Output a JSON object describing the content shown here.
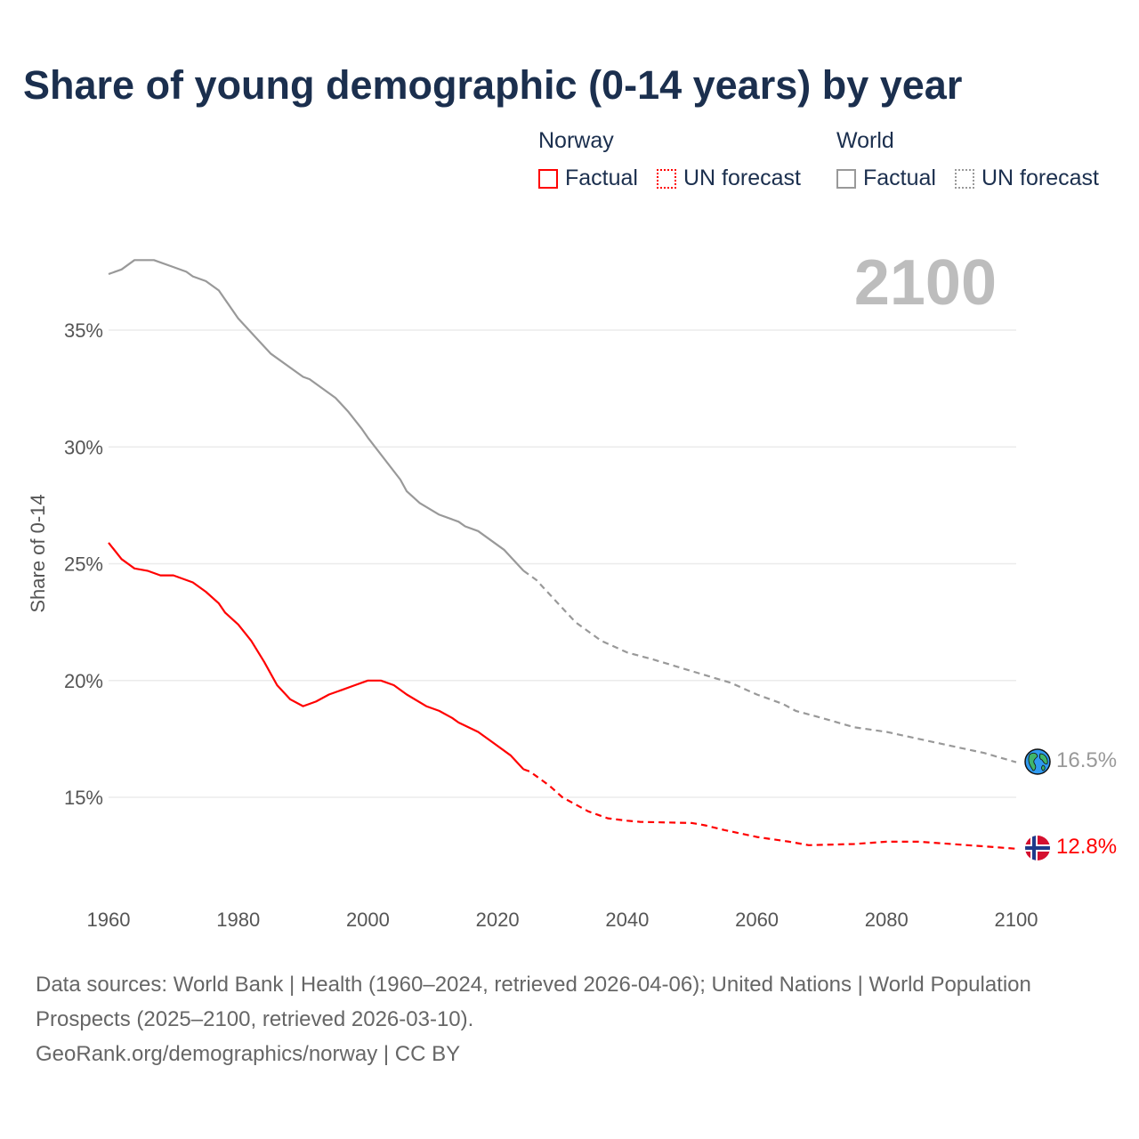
{
  "title": "Share of young demographic (0-14 years) by year",
  "legend": {
    "norway": {
      "group": "Norway",
      "factual": "Factual",
      "forecast": "UN forecast"
    },
    "world": {
      "group": "World",
      "factual": "Factual",
      "forecast": "UN forecast"
    }
  },
  "year_label": "2100",
  "footer": {
    "sources": "Data sources: World Bank | Health (1960–2024, retrieved 2026-04-06); United Nations | World Population Prospects (2025–2100, retrieved 2026-03-10).",
    "credit": "GeoRank.org/demographics/norway | CC BY"
  },
  "end_labels": {
    "world": "16.5%",
    "norway": "12.8%"
  },
  "chart_data": {
    "type": "line",
    "title": "Share of young demographic (0-14 years) by year",
    "xlabel": "",
    "ylabel": "Share of 0-14",
    "xlim": [
      1960,
      2100
    ],
    "ylim": [
      11,
      39
    ],
    "x_ticks": [
      "1960",
      "1980",
      "2000",
      "2020",
      "2040",
      "2060",
      "2080",
      "2100"
    ],
    "y_ticks": [
      {
        "v": 15,
        "label": "15%"
      },
      {
        "v": 20,
        "label": "20%"
      },
      {
        "v": 25,
        "label": "25%"
      },
      {
        "v": 30,
        "label": "30%"
      },
      {
        "v": 35,
        "label": "35%"
      }
    ],
    "grid": true,
    "colors": {
      "norway": "#ff0000",
      "world": "#999999"
    },
    "series": [
      {
        "name": "Norway Factual",
        "key": "norway",
        "dashed": false,
        "points": [
          [
            1960,
            25.9
          ],
          [
            1962,
            25.2
          ],
          [
            1964,
            24.8
          ],
          [
            1966,
            24.7
          ],
          [
            1968,
            24.5
          ],
          [
            1970,
            24.5
          ],
          [
            1973,
            24.2
          ],
          [
            1975,
            23.8
          ],
          [
            1977,
            23.3
          ],
          [
            1978,
            22.9
          ],
          [
            1980,
            22.4
          ],
          [
            1982,
            21.7
          ],
          [
            1984,
            20.8
          ],
          [
            1986,
            19.8
          ],
          [
            1988,
            19.2
          ],
          [
            1990,
            18.9
          ],
          [
            1992,
            19.1
          ],
          [
            1994,
            19.4
          ],
          [
            1996,
            19.6
          ],
          [
            1998,
            19.8
          ],
          [
            2000,
            20.0
          ],
          [
            2002,
            20.0
          ],
          [
            2004,
            19.8
          ],
          [
            2006,
            19.4
          ],
          [
            2009,
            18.9
          ],
          [
            2011,
            18.7
          ],
          [
            2013,
            18.4
          ],
          [
            2014,
            18.2
          ],
          [
            2017,
            17.8
          ],
          [
            2019,
            17.4
          ],
          [
            2022,
            16.8
          ],
          [
            2024,
            16.2
          ]
        ]
      },
      {
        "name": "Norway UN forecast",
        "key": "norway",
        "dashed": true,
        "points": [
          [
            2024,
            16.2
          ],
          [
            2025,
            16.1
          ],
          [
            2028,
            15.5
          ],
          [
            2030,
            15.0
          ],
          [
            2034,
            14.4
          ],
          [
            2037,
            14.1
          ],
          [
            2040,
            14.0
          ],
          [
            2042,
            13.95
          ],
          [
            2050,
            13.9
          ],
          [
            2052,
            13.8
          ],
          [
            2055,
            13.6
          ],
          [
            2060,
            13.3
          ],
          [
            2065,
            13.1
          ],
          [
            2068,
            12.95
          ],
          [
            2075,
            13.0
          ],
          [
            2080,
            13.1
          ],
          [
            2085,
            13.1
          ],
          [
            2090,
            13.0
          ],
          [
            2095,
            12.9
          ],
          [
            2100,
            12.8
          ]
        ]
      },
      {
        "name": "World Factual",
        "key": "world",
        "dashed": false,
        "points": [
          [
            1960,
            37.4
          ],
          [
            1962,
            37.6
          ],
          [
            1964,
            38.0
          ],
          [
            1967,
            38.0
          ],
          [
            1970,
            37.7
          ],
          [
            1972,
            37.5
          ],
          [
            1973,
            37.3
          ],
          [
            1975,
            37.1
          ],
          [
            1977,
            36.7
          ],
          [
            1980,
            35.5
          ],
          [
            1985,
            34.0
          ],
          [
            1990,
            33.0
          ],
          [
            1991,
            32.9
          ],
          [
            1995,
            32.1
          ],
          [
            1997,
            31.5
          ],
          [
            1999,
            30.8
          ],
          [
            2000,
            30.4
          ],
          [
            2005,
            28.6
          ],
          [
            2006,
            28.1
          ],
          [
            2008,
            27.6
          ],
          [
            2011,
            27.1
          ],
          [
            2014,
            26.8
          ],
          [
            2015,
            26.6
          ],
          [
            2017,
            26.4
          ],
          [
            2021,
            25.6
          ],
          [
            2024,
            24.7
          ]
        ]
      },
      {
        "name": "World UN forecast",
        "key": "world",
        "dashed": true,
        "points": [
          [
            2024,
            24.7
          ],
          [
            2026,
            24.3
          ],
          [
            2028,
            23.7
          ],
          [
            2032,
            22.5
          ],
          [
            2036,
            21.7
          ],
          [
            2040,
            21.2
          ],
          [
            2044,
            20.9
          ],
          [
            2050,
            20.4
          ],
          [
            2056,
            19.9
          ],
          [
            2060,
            19.4
          ],
          [
            2064,
            19.0
          ],
          [
            2066,
            18.7
          ],
          [
            2070,
            18.4
          ],
          [
            2075,
            18.0
          ],
          [
            2080,
            17.8
          ],
          [
            2085,
            17.5
          ],
          [
            2090,
            17.2
          ],
          [
            2095,
            16.9
          ],
          [
            2100,
            16.5
          ]
        ]
      }
    ]
  }
}
